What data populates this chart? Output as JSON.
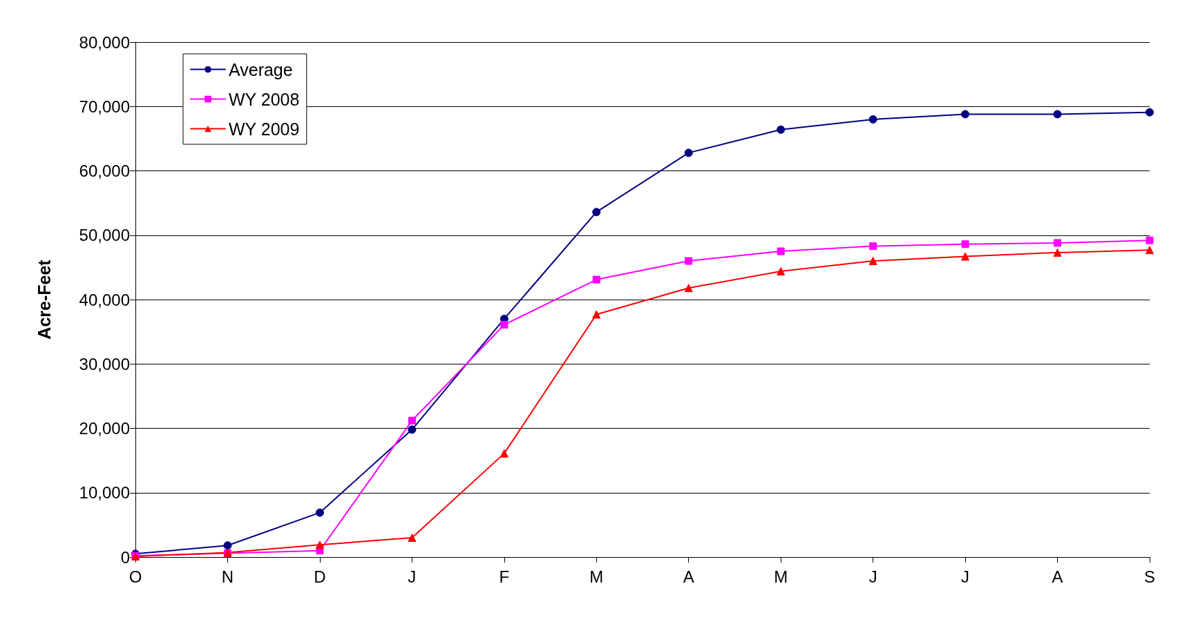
{
  "chart_data": {
    "type": "line",
    "ylabel": "Acre-Feet",
    "categories": [
      "O",
      "N",
      "D",
      "J",
      "F",
      "M",
      "A",
      "M",
      "J",
      "J",
      "A",
      "S"
    ],
    "series": [
      {
        "name": "Average",
        "color": "#000080",
        "marker": "circle",
        "values": [
          500,
          1800,
          6900,
          19800,
          37000,
          53600,
          62800,
          66400,
          68000,
          68800,
          68800,
          69100
        ]
      },
      {
        "name": "WY 2008",
        "color": "#ff00ff",
        "marker": "square",
        "values": [
          200,
          600,
          1000,
          21200,
          36100,
          43100,
          46000,
          47500,
          48300,
          48600,
          48800,
          49200
        ]
      },
      {
        "name": "WY 2009",
        "color": "#ff0000",
        "marker": "triangle",
        "values": [
          100,
          700,
          1900,
          3000,
          16100,
          37700,
          41800,
          44400,
          46000,
          46700,
          47300,
          47700
        ]
      }
    ],
    "ylim": [
      0,
      80000
    ],
    "yticks": [
      {
        "value": 0,
        "label": "0"
      },
      {
        "value": 10000,
        "label": "10,000"
      },
      {
        "value": 20000,
        "label": "20,000"
      },
      {
        "value": 30000,
        "label": "30,000"
      },
      {
        "value": 40000,
        "label": "40,000"
      },
      {
        "value": 50000,
        "label": "50,000"
      },
      {
        "value": 60000,
        "label": "60,000"
      },
      {
        "value": 70000,
        "label": "70,000"
      },
      {
        "value": 80000,
        "label": "80,000"
      }
    ],
    "grid": "y",
    "legend": "top left",
    "line_style": "solid"
  }
}
